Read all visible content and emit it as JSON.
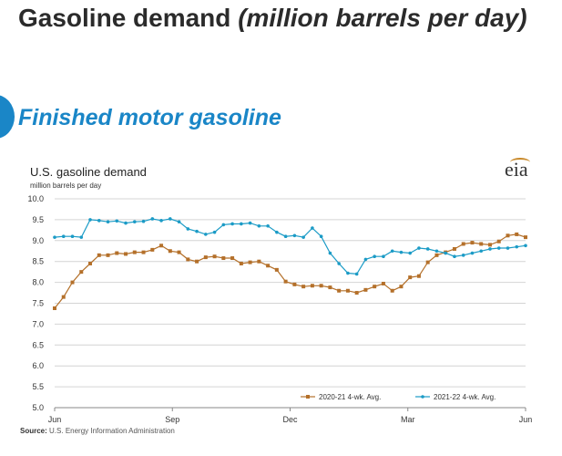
{
  "header": {
    "title_main": "Gasoline demand",
    "title_unit": "(million barrels per day)"
  },
  "section": {
    "title": "Finished motor gasoline"
  },
  "logo": {
    "text": "eia"
  },
  "source": {
    "label": "Source:",
    "text": "U.S. Energy Information Administration"
  },
  "colors": {
    "series_2020_21": "#b4702a",
    "series_2021_22": "#1b9bc6",
    "grid": "#d4d4d4",
    "section_accent": "#1a86c7"
  },
  "chart_data": {
    "type": "line",
    "title": "U.S. gasoline demand",
    "ylabel": "million barrels per day",
    "ylim": [
      5.0,
      10.0
    ],
    "yticks": [
      "10.0",
      "9.5",
      "9.0",
      "8.5",
      "8.0",
      "7.5",
      "7.0",
      "6.5",
      "6.0",
      "5.5",
      "5.0"
    ],
    "xticks": [
      "Jun",
      "Sep",
      "Dec",
      "Mar",
      "Jun"
    ],
    "grid": true,
    "legend": "bottom-right",
    "series": [
      {
        "name": "2020-21  4-wk. Avg.",
        "marker": "square",
        "values": [
          7.38,
          7.65,
          8.0,
          8.25,
          8.45,
          8.65,
          8.65,
          8.7,
          8.68,
          8.72,
          8.72,
          8.78,
          8.88,
          8.75,
          8.72,
          8.55,
          8.5,
          8.6,
          8.62,
          8.58,
          8.58,
          8.45,
          8.48,
          8.5,
          8.4,
          8.3,
          8.02,
          7.95,
          7.9,
          7.92,
          7.92,
          7.88,
          7.8,
          7.8,
          7.75,
          7.82,
          7.9,
          7.97,
          7.8,
          7.9,
          8.12,
          8.15,
          8.48,
          8.65,
          8.72,
          8.8,
          8.92,
          8.95,
          8.92,
          8.9,
          8.98,
          9.12,
          9.15,
          9.08
        ]
      },
      {
        "name": "2021-22  4-wk. Avg.",
        "marker": "dot",
        "values": [
          9.08,
          9.1,
          9.1,
          9.08,
          9.5,
          9.48,
          9.45,
          9.47,
          9.42,
          9.45,
          9.46,
          9.52,
          9.48,
          9.52,
          9.45,
          9.28,
          9.22,
          9.15,
          9.2,
          9.38,
          9.4,
          9.4,
          9.42,
          9.35,
          9.35,
          9.2,
          9.1,
          9.12,
          9.08,
          9.3,
          9.1,
          8.7,
          8.45,
          8.22,
          8.2,
          8.55,
          8.62,
          8.62,
          8.75,
          8.72,
          8.7,
          8.82,
          8.8,
          8.75,
          8.7,
          8.62,
          8.65,
          8.7,
          8.75,
          8.8,
          8.82,
          8.82,
          8.85,
          8.88
        ]
      }
    ]
  }
}
